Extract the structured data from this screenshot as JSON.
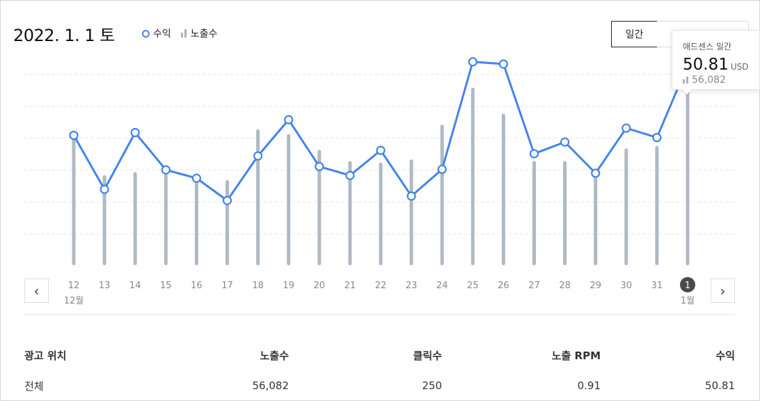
{
  "header": {
    "date": "2022. 1. 1 토",
    "legend_revenue": "수익",
    "legend_impressions": "노출수",
    "period_button": "일간"
  },
  "tooltip": {
    "title": "애드센스 일간",
    "value": "50.81",
    "unit": "USD",
    "impressions": "56,082"
  },
  "chart_data": {
    "type": "line",
    "x": [
      "12",
      "13",
      "14",
      "15",
      "16",
      "17",
      "18",
      "19",
      "20",
      "21",
      "22",
      "23",
      "24",
      "25",
      "26",
      "27",
      "28",
      "29",
      "30",
      "31",
      "1"
    ],
    "month_labels": {
      "0": "12월",
      "20": "1월"
    },
    "selected_index": 20,
    "series": [
      {
        "name": "수익",
        "type": "line",
        "values": [
          38.2,
          28.5,
          38.7,
          32.0,
          30.5,
          26.5,
          34.5,
          41.0,
          32.6,
          31.0,
          35.5,
          27.3,
          32.1,
          51.4,
          51.0,
          34.9,
          37.0,
          31.4,
          39.5,
          37.8,
          50.81
        ]
      },
      {
        "name": "노출수",
        "type": "bar",
        "values": [
          42000,
          28500,
          29500,
          29000,
          28000,
          27000,
          43000,
          41500,
          36500,
          33000,
          32500,
          33500,
          44500,
          56200,
          48000,
          33000,
          33000,
          29000,
          37000,
          37800,
          56082
        ]
      }
    ],
    "colors": {
      "line": "#4384e8",
      "bar": "#b0b9c3",
      "grid": "#e3e3e3",
      "selected_dot": "#4a4a4a"
    }
  },
  "table": {
    "headers": [
      "광고 위치",
      "노출수",
      "클릭수",
      "노출 RPM",
      "수익"
    ],
    "rows": [
      [
        "전체",
        "56,082",
        "250",
        "0.91",
        "50.81"
      ]
    ]
  },
  "nav": {
    "prev": "‹",
    "next": "›"
  }
}
